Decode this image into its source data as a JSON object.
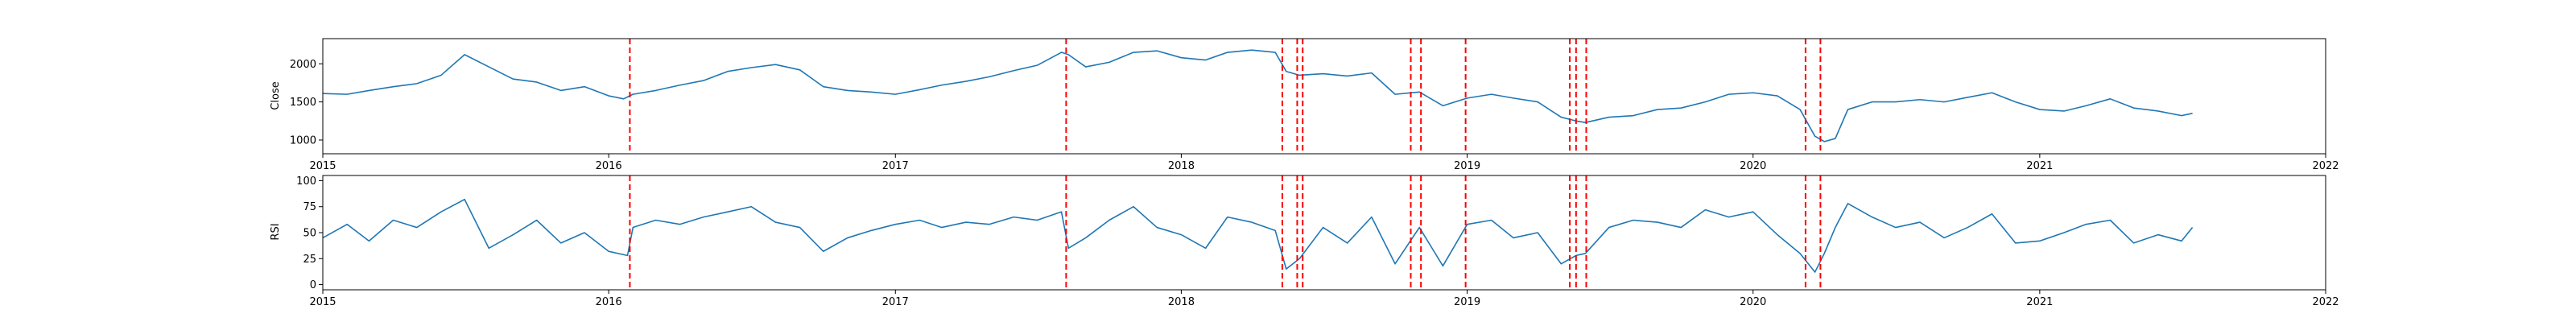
{
  "chart_data": [
    {
      "type": "line",
      "title": "",
      "xlabel": "",
      "ylabel": "Close",
      "xlim": [
        "2015-01-01",
        "2022-01-01"
      ],
      "ylim": [
        820,
        2330
      ],
      "xticks": [
        "2015",
        "2016",
        "2017",
        "2018",
        "2019",
        "2020",
        "2021",
        "2022"
      ],
      "yticks": [
        1000,
        1500,
        2000
      ],
      "grid": false,
      "series": [
        {
          "name": "",
          "color": "#1f77b4",
          "points": [
            [
              "2015-01-01",
              1610
            ],
            [
              "2015-02-01",
              1600
            ],
            [
              "2015-03-01",
              1650
            ],
            [
              "2015-04-01",
              1700
            ],
            [
              "2015-05-01",
              1740
            ],
            [
              "2015-06-01",
              1850
            ],
            [
              "2015-07-01",
              2120
            ],
            [
              "2015-08-01",
              1960
            ],
            [
              "2015-09-01",
              1800
            ],
            [
              "2015-10-01",
              1760
            ],
            [
              "2015-11-01",
              1650
            ],
            [
              "2015-12-01",
              1700
            ],
            [
              "2016-01-01",
              1580
            ],
            [
              "2016-01-20",
              1540
            ],
            [
              "2016-02-01",
              1600
            ],
            [
              "2016-03-01",
              1650
            ],
            [
              "2016-04-01",
              1720
            ],
            [
              "2016-05-01",
              1780
            ],
            [
              "2016-06-01",
              1900
            ],
            [
              "2016-07-01",
              1950
            ],
            [
              "2016-08-01",
              1990
            ],
            [
              "2016-09-01",
              1920
            ],
            [
              "2016-10-01",
              1700
            ],
            [
              "2016-11-01",
              1650
            ],
            [
              "2016-12-01",
              1630
            ],
            [
              "2017-01-01",
              1600
            ],
            [
              "2017-02-01",
              1660
            ],
            [
              "2017-03-01",
              1720
            ],
            [
              "2017-04-01",
              1770
            ],
            [
              "2017-05-01",
              1830
            ],
            [
              "2017-06-01",
              1910
            ],
            [
              "2017-07-01",
              1980
            ],
            [
              "2017-08-01",
              2150
            ],
            [
              "2017-08-10",
              2120
            ],
            [
              "2017-09-01",
              1960
            ],
            [
              "2017-10-01",
              2020
            ],
            [
              "2017-11-01",
              2150
            ],
            [
              "2017-12-01",
              2170
            ],
            [
              "2018-01-01",
              2080
            ],
            [
              "2018-02-01",
              2050
            ],
            [
              "2018-03-01",
              2150
            ],
            [
              "2018-04-01",
              2180
            ],
            [
              "2018-05-01",
              2150
            ],
            [
              "2018-05-15",
              1900
            ],
            [
              "2018-06-01",
              1850
            ],
            [
              "2018-07-01",
              1870
            ],
            [
              "2018-08-01",
              1840
            ],
            [
              "2018-09-01",
              1880
            ],
            [
              "2018-10-01",
              1600
            ],
            [
              "2018-11-01",
              1630
            ],
            [
              "2018-12-01",
              1450
            ],
            [
              "2019-01-01",
              1550
            ],
            [
              "2019-02-01",
              1600
            ],
            [
              "2019-03-01",
              1550
            ],
            [
              "2019-04-01",
              1500
            ],
            [
              "2019-05-01",
              1300
            ],
            [
              "2019-05-20",
              1250
            ],
            [
              "2019-06-01",
              1230
            ],
            [
              "2019-07-01",
              1300
            ],
            [
              "2019-08-01",
              1320
            ],
            [
              "2019-09-01",
              1400
            ],
            [
              "2019-10-01",
              1420
            ],
            [
              "2019-11-01",
              1500
            ],
            [
              "2019-12-01",
              1600
            ],
            [
              "2020-01-01",
              1620
            ],
            [
              "2020-02-01",
              1580
            ],
            [
              "2020-03-01",
              1400
            ],
            [
              "2020-03-20",
              1050
            ],
            [
              "2020-04-01",
              980
            ],
            [
              "2020-04-15",
              1020
            ],
            [
              "2020-05-01",
              1400
            ],
            [
              "2020-06-01",
              1500
            ],
            [
              "2020-07-01",
              1500
            ],
            [
              "2020-08-01",
              1530
            ],
            [
              "2020-09-01",
              1500
            ],
            [
              "2020-10-01",
              1560
            ],
            [
              "2020-11-01",
              1620
            ],
            [
              "2020-12-01",
              1500
            ],
            [
              "2021-01-01",
              1400
            ],
            [
              "2021-02-01",
              1380
            ],
            [
              "2021-03-01",
              1450
            ],
            [
              "2021-04-01",
              1540
            ],
            [
              "2021-05-01",
              1420
            ],
            [
              "2021-06-01",
              1380
            ],
            [
              "2021-07-01",
              1320
            ],
            [
              "2021-07-15",
              1350
            ]
          ]
        }
      ],
      "vlines": {
        "color": "#ff0000",
        "style": "dashed",
        "x": [
          "2016-01-28",
          "2017-08-07",
          "2018-05-10",
          "2018-05-29",
          "2018-06-05",
          "2018-10-21",
          "2018-11-03",
          "2018-12-30",
          "2019-05-12",
          "2019-05-20",
          "2019-06-02",
          "2020-03-08",
          "2020-03-27"
        ]
      }
    },
    {
      "type": "line",
      "title": "",
      "xlabel": "",
      "ylabel": "RSI",
      "xlim": [
        "2015-01-01",
        "2022-01-01"
      ],
      "ylim": [
        -5,
        105
      ],
      "xticks": [
        "2015",
        "2016",
        "2017",
        "2018",
        "2019",
        "2020",
        "2021",
        "2022"
      ],
      "yticks": [
        0,
        25,
        50,
        75,
        100
      ],
      "grid": false,
      "series": [
        {
          "name": "",
          "color": "#1f77b4",
          "points": [
            [
              "2015-01-01",
              45
            ],
            [
              "2015-02-01",
              58
            ],
            [
              "2015-03-01",
              42
            ],
            [
              "2015-04-01",
              62
            ],
            [
              "2015-05-01",
              55
            ],
            [
              "2015-06-01",
              70
            ],
            [
              "2015-07-01",
              82
            ],
            [
              "2015-08-01",
              35
            ],
            [
              "2015-09-01",
              48
            ],
            [
              "2015-10-01",
              62
            ],
            [
              "2015-11-01",
              40
            ],
            [
              "2015-12-01",
              50
            ],
            [
              "2016-01-01",
              32
            ],
            [
              "2016-01-25",
              28
            ],
            [
              "2016-02-01",
              55
            ],
            [
              "2016-03-01",
              62
            ],
            [
              "2016-04-01",
              58
            ],
            [
              "2016-05-01",
              65
            ],
            [
              "2016-06-01",
              70
            ],
            [
              "2016-07-01",
              75
            ],
            [
              "2016-08-01",
              60
            ],
            [
              "2016-09-01",
              55
            ],
            [
              "2016-10-01",
              32
            ],
            [
              "2016-11-01",
              45
            ],
            [
              "2016-12-01",
              52
            ],
            [
              "2017-01-01",
              58
            ],
            [
              "2017-02-01",
              62
            ],
            [
              "2017-03-01",
              55
            ],
            [
              "2017-04-01",
              60
            ],
            [
              "2017-05-01",
              58
            ],
            [
              "2017-06-01",
              65
            ],
            [
              "2017-07-01",
              62
            ],
            [
              "2017-08-01",
              70
            ],
            [
              "2017-08-10",
              35
            ],
            [
              "2017-09-01",
              45
            ],
            [
              "2017-10-01",
              62
            ],
            [
              "2017-11-01",
              75
            ],
            [
              "2017-12-01",
              55
            ],
            [
              "2018-01-01",
              48
            ],
            [
              "2018-02-01",
              35
            ],
            [
              "2018-03-01",
              65
            ],
            [
              "2018-04-01",
              60
            ],
            [
              "2018-05-01",
              52
            ],
            [
              "2018-05-15",
              15
            ],
            [
              "2018-06-01",
              25
            ],
            [
              "2018-07-01",
              55
            ],
            [
              "2018-08-01",
              40
            ],
            [
              "2018-09-01",
              65
            ],
            [
              "2018-10-01",
              20
            ],
            [
              "2018-11-01",
              55
            ],
            [
              "2018-12-01",
              18
            ],
            [
              "2019-01-01",
              58
            ],
            [
              "2019-02-01",
              62
            ],
            [
              "2019-03-01",
              45
            ],
            [
              "2019-04-01",
              50
            ],
            [
              "2019-05-01",
              20
            ],
            [
              "2019-05-20",
              28
            ],
            [
              "2019-06-01",
              30
            ],
            [
              "2019-07-01",
              55
            ],
            [
              "2019-08-01",
              62
            ],
            [
              "2019-09-01",
              60
            ],
            [
              "2019-10-01",
              55
            ],
            [
              "2019-11-01",
              72
            ],
            [
              "2019-12-01",
              65
            ],
            [
              "2020-01-01",
              70
            ],
            [
              "2020-02-01",
              48
            ],
            [
              "2020-03-01",
              30
            ],
            [
              "2020-03-20",
              12
            ],
            [
              "2020-04-01",
              30
            ],
            [
              "2020-04-15",
              55
            ],
            [
              "2020-05-01",
              78
            ],
            [
              "2020-06-01",
              65
            ],
            [
              "2020-07-01",
              55
            ],
            [
              "2020-08-01",
              60
            ],
            [
              "2020-09-01",
              45
            ],
            [
              "2020-10-01",
              55
            ],
            [
              "2020-11-01",
              68
            ],
            [
              "2020-12-01",
              40
            ],
            [
              "2021-01-01",
              42
            ],
            [
              "2021-02-01",
              50
            ],
            [
              "2021-03-01",
              58
            ],
            [
              "2021-04-01",
              62
            ],
            [
              "2021-05-01",
              40
            ],
            [
              "2021-06-01",
              48
            ],
            [
              "2021-07-01",
              42
            ],
            [
              "2021-07-15",
              55
            ]
          ]
        }
      ],
      "vlines": {
        "color": "#ff0000",
        "style": "dashed",
        "x": [
          "2016-01-28",
          "2017-08-07",
          "2018-05-10",
          "2018-05-29",
          "2018-06-05",
          "2018-10-21",
          "2018-11-03",
          "2018-12-30",
          "2019-05-12",
          "2019-05-20",
          "2019-06-02",
          "2020-03-08",
          "2020-03-27"
        ]
      }
    }
  ]
}
